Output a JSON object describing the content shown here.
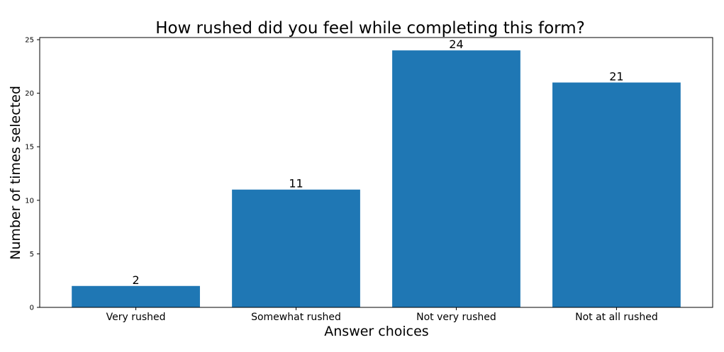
{
  "chart_data": {
    "type": "bar",
    "title": "How rushed did you feel while completing this form?",
    "xlabel": "Answer choices",
    "ylabel": "Number of times selected",
    "categories": [
      "Very rushed",
      "Somewhat rushed",
      "Not very rushed",
      "Not at all rushed"
    ],
    "values": [
      2,
      11,
      24,
      21
    ],
    "data_labels": [
      "2",
      "11",
      "24",
      "21"
    ],
    "ylim": [
      0,
      25.2
    ],
    "yticks": [
      0,
      5,
      10,
      15,
      20,
      25
    ],
    "ytick_labels": [
      "0",
      "5",
      "10",
      "15",
      "20",
      "25"
    ],
    "grid": false,
    "legend": "none",
    "bar_color": "#1f77b4"
  }
}
